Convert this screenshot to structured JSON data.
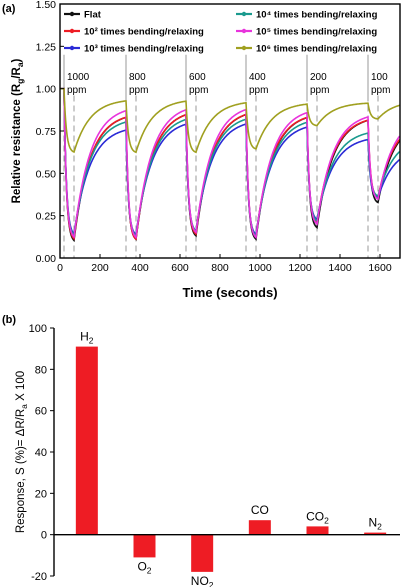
{
  "panel_a": {
    "panel_label": "(a)",
    "colors": {
      "flat": "#111111",
      "b1e2": "#ee1c24",
      "b1e3": "#2b2bd6",
      "b1e4": "#1a9a8e",
      "b1e5": "#e834dc",
      "b1e6": "#a0a020"
    },
    "legend": [
      {
        "key": "flat",
        "label": "Flat"
      },
      {
        "key": "b1e4",
        "label": "10⁴ times bending/relaxing"
      },
      {
        "key": "b1e2",
        "label": "10² times bending/relaxing"
      },
      {
        "key": "b1e5",
        "label": "10⁵ times bending/relaxing"
      },
      {
        "key": "b1e3",
        "label": "10³ times bending/relaxing"
      },
      {
        "key": "b1e6",
        "label": "10⁶ times bending/relaxing"
      }
    ],
    "ppm_labels": [
      {
        "value": "1000",
        "unit": "ppm"
      },
      {
        "value": "800",
        "unit": "ppm"
      },
      {
        "value": "600",
        "unit": "ppm"
      },
      {
        "value": "400",
        "unit": "ppm"
      },
      {
        "value": "200",
        "unit": "ppm"
      },
      {
        "value": "100",
        "unit": "ppm"
      }
    ]
  },
  "panel_b": {
    "panel_label": "(b)",
    "bar_color": "#ee1c24"
  },
  "chart_data": [
    {
      "type": "line",
      "xlabel": "Time (seconds)",
      "ylabel": "Relative resistance (Rg/Ra)",
      "xlim": [
        0,
        1700
      ],
      "ylim": [
        0,
        1.5
      ],
      "xticks": [
        0,
        200,
        400,
        600,
        800,
        1000,
        1200,
        1400,
        1600
      ],
      "yticks": [
        0.0,
        0.25,
        0.5,
        0.75,
        1.0,
        1.25,
        1.5
      ],
      "ytick_labels": [
        "0.00",
        "0.25",
        "0.50",
        "0.75",
        "1.00",
        "1.25",
        "1.50"
      ],
      "grid": false,
      "legend_position": "top",
      "pulse_starts": [
        20,
        330,
        630,
        930,
        1235,
        1540
      ],
      "series": [
        {
          "name": "Flat",
          "color_key": "flat",
          "minima": [
            0.09,
            0.1,
            0.12,
            0.1,
            0.17,
            0.32
          ],
          "recovery": [
            0.86,
            0.88,
            0.88,
            0.86,
            0.84,
            0.82
          ]
        },
        {
          "name": "10² times bending/relaxing",
          "color_key": "b1e2",
          "minima": [
            0.1,
            0.1,
            0.13,
            0.12,
            0.2,
            0.35
          ],
          "recovery": [
            0.86,
            0.88,
            0.88,
            0.86,
            0.84,
            0.82
          ]
        },
        {
          "name": "10³ times bending/relaxing",
          "color_key": "b1e3",
          "minima": [
            0.13,
            0.13,
            0.15,
            0.13,
            0.22,
            0.35
          ],
          "recovery": [
            0.78,
            0.82,
            0.82,
            0.8,
            0.72,
            0.66
          ]
        },
        {
          "name": "10⁴ times bending/relaxing",
          "color_key": "b1e4",
          "minima": [
            0.12,
            0.12,
            0.15,
            0.12,
            0.21,
            0.36
          ],
          "recovery": [
            0.83,
            0.85,
            0.85,
            0.83,
            0.76,
            0.72
          ]
        },
        {
          "name": "10⁵ times bending/relaxing",
          "color_key": "b1e5",
          "minima": [
            0.11,
            0.11,
            0.14,
            0.11,
            0.19,
            0.34
          ],
          "recovery": [
            0.9,
            0.91,
            0.91,
            0.89,
            0.86,
            0.85
          ]
        },
        {
          "name": "10⁶ times bending/relaxing",
          "color_key": "b1e6",
          "minima": [
            0.62,
            0.62,
            0.62,
            0.64,
            0.78,
            0.82
          ],
          "recovery": [
            0.94,
            0.94,
            0.93,
            0.92,
            0.92,
            0.93
          ]
        }
      ]
    },
    {
      "type": "bar",
      "ylabel": "Response, S (%)= ΔR/Ra X 100",
      "ylim": [
        -20,
        100
      ],
      "yticks": [
        -20,
        0,
        20,
        40,
        60,
        80,
        100
      ],
      "grid": false,
      "categories": [
        "H2",
        "O2",
        "NO2",
        "CO",
        "CO2",
        "N2"
      ],
      "category_labels": [
        {
          "base": "H",
          "sub": "2"
        },
        {
          "base": "O",
          "sub": "2"
        },
        {
          "base": "NO",
          "sub": "2"
        },
        {
          "base": "CO",
          "sub": ""
        },
        {
          "base": "CO",
          "sub": "2"
        },
        {
          "base": "N",
          "sub": "2"
        }
      ],
      "values": [
        91,
        -11,
        -18,
        7,
        4,
        1
      ]
    }
  ]
}
